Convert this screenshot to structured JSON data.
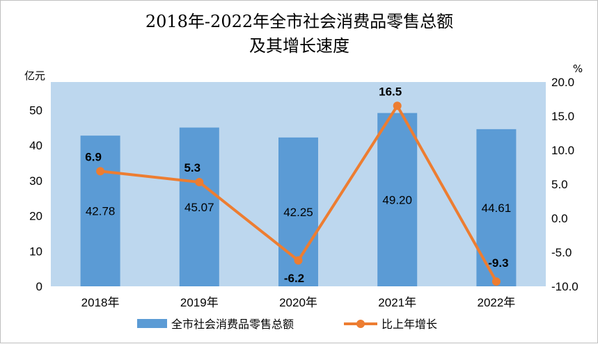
{
  "chart_data": {
    "type": "bar+line",
    "title_lines": [
      "2018年-2022年全市社会消费品零售总额",
      "及其增长速度"
    ],
    "categories": [
      "2018年",
      "2019年",
      "2020年",
      "2021年",
      "2022年"
    ],
    "series": [
      {
        "name": "全市社会消费品零售总额",
        "type": "bar",
        "axis": "left",
        "values": [
          42.78,
          45.07,
          42.25,
          49.2,
          44.61
        ],
        "labels": [
          "42.78",
          "45.07",
          "42.25",
          "49.20",
          "44.61"
        ]
      },
      {
        "name": "比上年增长",
        "type": "line",
        "axis": "right",
        "values": [
          6.9,
          5.3,
          -6.2,
          16.5,
          -9.3
        ],
        "labels": [
          "6.9",
          "5.3",
          "-6.2",
          "16.5",
          "-9.3"
        ]
      }
    ],
    "left_axis": {
      "unit": "亿元",
      "ylim": [
        0,
        58
      ],
      "ticks": [
        "0",
        "10",
        "20",
        "30",
        "40",
        "50"
      ],
      "tick_values": [
        0,
        10,
        20,
        30,
        40,
        50
      ]
    },
    "right_axis": {
      "unit": "%",
      "ylim": [
        -10,
        20
      ],
      "ticks": [
        "-10.0",
        "-5.0",
        "0.0",
        "5.0",
        "10.0",
        "15.0",
        "20.0"
      ],
      "tick_values": [
        -10,
        -5,
        0,
        5,
        10,
        15,
        20
      ]
    },
    "legend_position": "bottom-center",
    "colors": {
      "bar": "#5b9bd5",
      "line": "#ed7d31",
      "plot_bg": "#bdd7ee"
    }
  }
}
